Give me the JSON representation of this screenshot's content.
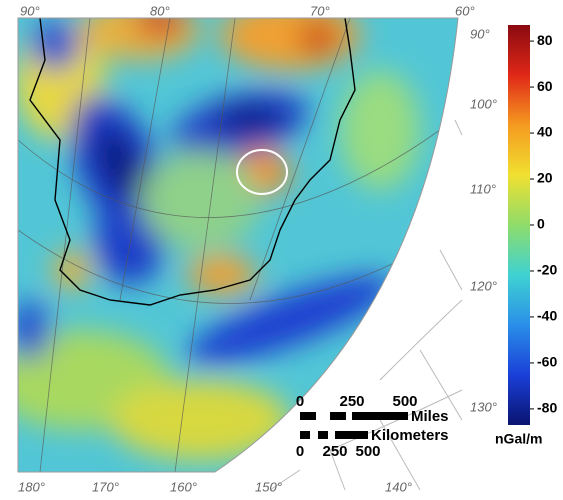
{
  "map": {
    "top_labels": [
      "90°",
      "80°",
      "70°",
      "60°"
    ],
    "right_labels": [
      "90°",
      "100°",
      "110°",
      "120°",
      "130°"
    ],
    "bottom_labels": [
      "180°",
      "170°",
      "160°",
      "150°",
      "140°"
    ]
  },
  "colorbar": {
    "range": [
      -87,
      87
    ],
    "ticks": [
      80,
      60,
      40,
      20,
      0,
      -20,
      -40,
      -60,
      -80
    ],
    "unit": "nGal/m",
    "colors": [
      "#0a1470",
      "#1a3fd8",
      "#2a8fe8",
      "#3fd2d2",
      "#8fdc6a",
      "#f0e030",
      "#f59a20",
      "#e02818",
      "#8a0a10"
    ]
  },
  "scale_bar": {
    "miles": {
      "ticks": [
        0,
        250,
        500
      ],
      "unit": "Miles"
    },
    "kilometers": {
      "ticks": [
        0,
        250,
        500
      ],
      "unit": "Kilometers"
    }
  }
}
